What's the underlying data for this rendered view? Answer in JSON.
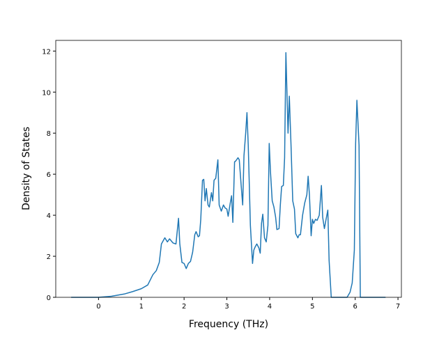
{
  "chart_data": {
    "type": "line",
    "xlabel": "Frequency (THz)",
    "ylabel": "Density of States",
    "x": [
      -0.64,
      0,
      0.3,
      0.6,
      0.8,
      1.0,
      1.15,
      1.27,
      1.35,
      1.42,
      1.47,
      1.55,
      1.61,
      1.66,
      1.74,
      1.81,
      1.87,
      1.9,
      1.95,
      2.0,
      2.05,
      2.1,
      2.15,
      2.2,
      2.25,
      2.28,
      2.33,
      2.36,
      2.39,
      2.43,
      2.46,
      2.49,
      2.52,
      2.56,
      2.59,
      2.64,
      2.67,
      2.7,
      2.74,
      2.79,
      2.82,
      2.87,
      2.92,
      2.96,
      3.0,
      3.03,
      3.08,
      3.11,
      3.14,
      3.18,
      3.21,
      3.26,
      3.29,
      3.34,
      3.37,
      3.4,
      3.44,
      3.47,
      3.5,
      3.55,
      3.6,
      3.63,
      3.66,
      3.7,
      3.75,
      3.78,
      3.81,
      3.84,
      3.88,
      3.92,
      3.96,
      3.99,
      4.02,
      4.06,
      4.1,
      4.14,
      4.17,
      4.22,
      4.25,
      4.28,
      4.32,
      4.35,
      4.38,
      4.43,
      4.46,
      4.5,
      4.54,
      4.58,
      4.61,
      4.66,
      4.69,
      4.72,
      4.77,
      4.82,
      4.87,
      4.9,
      4.93,
      4.97,
      5.0,
      5.03,
      5.07,
      5.11,
      5.16,
      5.21,
      5.24,
      5.28,
      5.31,
      5.36,
      5.39,
      5.44,
      5.81,
      5.88,
      5.93,
      5.98,
      6.01,
      6.04,
      6.09,
      6.12,
      6.71
    ],
    "series": [
      {
        "color": "#1f77b4",
        "values": [
          0,
          0,
          0.05,
          0.16,
          0.28,
          0.42,
          0.6,
          1.1,
          1.3,
          1.7,
          2.6,
          2.9,
          2.7,
          2.85,
          2.65,
          2.6,
          3.85,
          2.6,
          1.7,
          1.65,
          1.4,
          1.65,
          1.75,
          2.2,
          3.05,
          3.2,
          2.95,
          3.0,
          3.8,
          5.7,
          5.75,
          4.7,
          5.3,
          4.5,
          4.4,
          5.1,
          4.7,
          5.7,
          5.8,
          6.7,
          4.5,
          4.2,
          4.5,
          4.35,
          4.3,
          3.95,
          4.6,
          4.95,
          3.65,
          6.6,
          6.65,
          6.8,
          6.7,
          5.3,
          4.5,
          6.9,
          8.0,
          9.0,
          7.4,
          3.5,
          1.65,
          2.3,
          2.45,
          2.6,
          2.4,
          2.15,
          3.6,
          4.05,
          2.9,
          2.7,
          3.5,
          7.5,
          6.1,
          4.7,
          4.4,
          3.9,
          3.3,
          3.35,
          4.5,
          5.4,
          5.45,
          6.8,
          11.92,
          8.0,
          9.8,
          7.4,
          4.7,
          4.3,
          3.1,
          2.9,
          3.05,
          3.05,
          4.0,
          4.6,
          5.0,
          5.9,
          5.0,
          3.0,
          3.8,
          3.6,
          3.8,
          3.75,
          4.0,
          5.45,
          3.9,
          3.35,
          3.7,
          4.25,
          1.8,
          0,
          0,
          0.25,
          0.7,
          2.3,
          7.5,
          9.6,
          7.4,
          0,
          0
        ]
      }
    ],
    "xlim": [
      -1.0,
      7.08
    ],
    "ylim": [
      0,
      12.52
    ],
    "xticks": [
      0,
      1,
      2,
      3,
      4,
      5,
      6,
      7
    ],
    "yticks": [
      0,
      2,
      4,
      6,
      8,
      10,
      12
    ]
  }
}
